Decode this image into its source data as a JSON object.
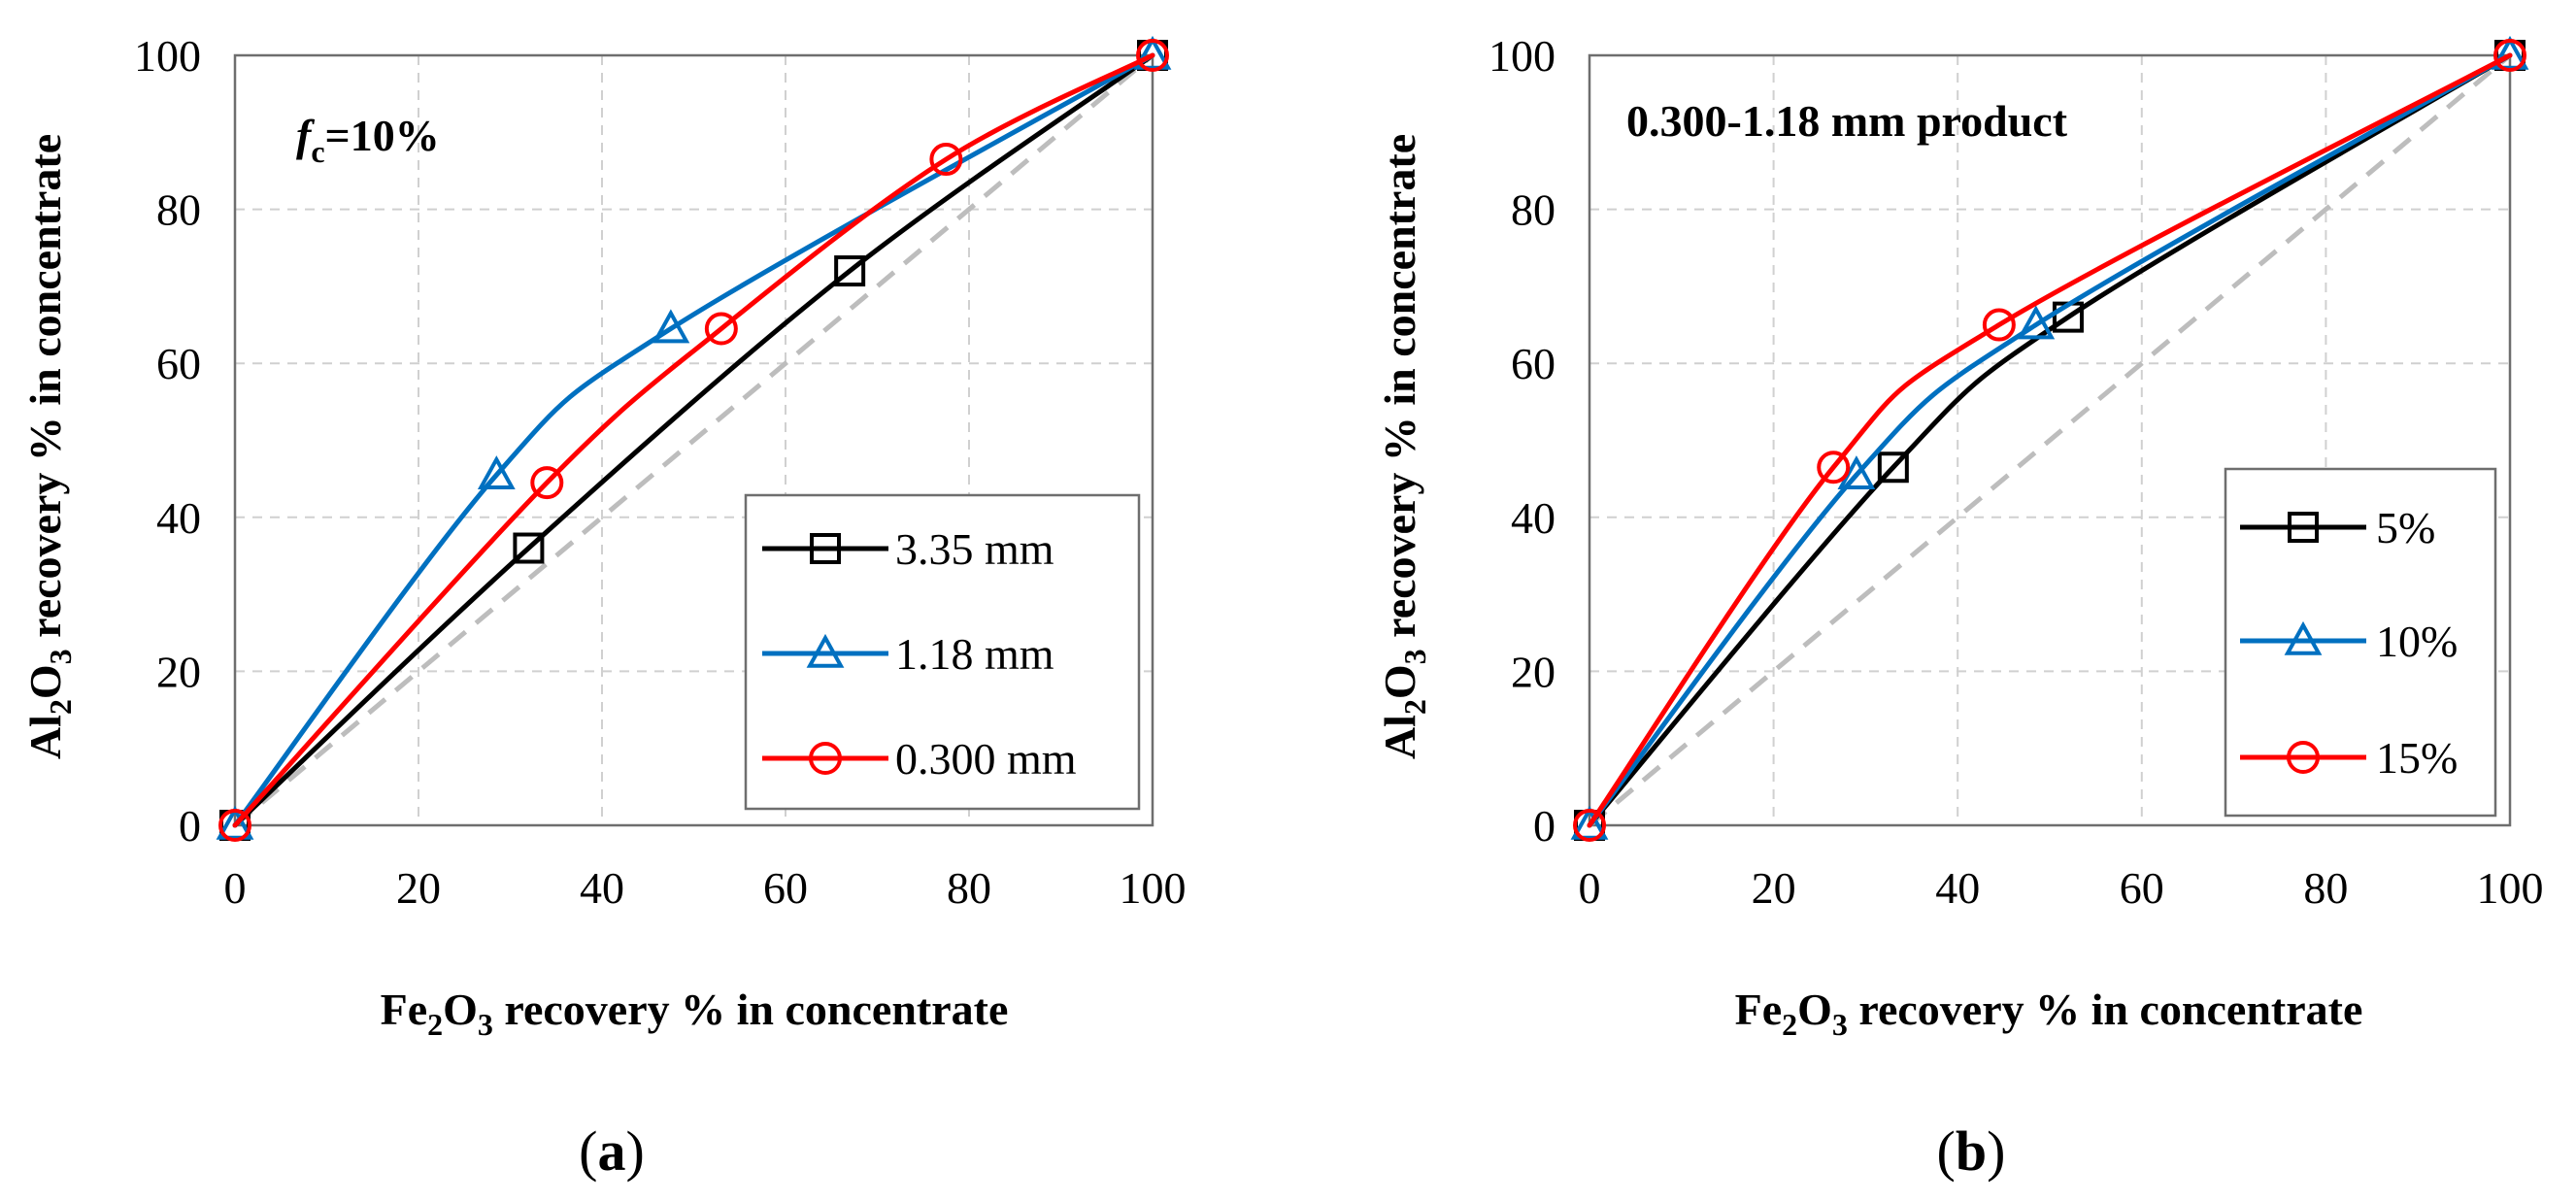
{
  "chart_data": [
    {
      "type": "line",
      "panel_label": "a",
      "annotation": {
        "italic": "f",
        "sub": "c",
        "rest": "=10%"
      },
      "xlabel": {
        "pre": "Fe",
        "s1": "2",
        "mid": "O",
        "s2": "3",
        "post": " recovery %  in concentrate"
      },
      "ylabel": {
        "pre": "Al",
        "s1": "2",
        "mid": "O",
        "s2": "3",
        "post": "  recovery %   in concentrate"
      },
      "xlim": [
        0,
        100
      ],
      "ylim": [
        0,
        100
      ],
      "xticks": [
        "0",
        "20",
        "40",
        "60",
        "80",
        "100"
      ],
      "yticks": [
        "0",
        "20",
        "40",
        "60",
        "80",
        "100"
      ],
      "grid": true,
      "legend_position": "bottom-right",
      "diagonal_reference": true,
      "series": [
        {
          "name": "3.35 mm",
          "color": "#000000",
          "marker": "square",
          "x": [
            0,
            32,
            67,
            100
          ],
          "y": [
            0,
            36,
            72,
            100
          ]
        },
        {
          "name": "1.18 mm",
          "color": "#0070c0",
          "marker": "triangle",
          "x": [
            0,
            28.5,
            47.5,
            100
          ],
          "y": [
            0,
            45.5,
            64.5,
            100
          ]
        },
        {
          "name": "0.300 mm",
          "color": "#ff0000",
          "marker": "circle",
          "x": [
            0,
            34,
            53,
            77.5,
            100
          ],
          "y": [
            0,
            44.5,
            64.5,
            86.5,
            100
          ]
        }
      ]
    },
    {
      "type": "line",
      "panel_label": "b",
      "annotation": {
        "text": "0.300-1.18 mm product"
      },
      "xlabel": {
        "pre": "Fe",
        "s1": "2",
        "mid": "O",
        "s2": "3",
        "post": " recovery %  in concentrate"
      },
      "ylabel": {
        "pre": "Al",
        "s1": "2",
        "mid": "O",
        "s2": "3",
        "post": "  recovery %   in concentrate"
      },
      "xlim": [
        0,
        100
      ],
      "ylim": [
        0,
        100
      ],
      "xticks": [
        "0",
        "20",
        "40",
        "60",
        "80",
        "100"
      ],
      "yticks": [
        "0",
        "20",
        "40",
        "60",
        "80",
        "100"
      ],
      "grid": true,
      "legend_position": "bottom-right",
      "diagonal_reference": true,
      "series": [
        {
          "name": "5%",
          "color": "#000000",
          "marker": "square",
          "x": [
            0,
            33,
            52,
            100
          ],
          "y": [
            0,
            46.5,
            66,
            100
          ]
        },
        {
          "name": "10%",
          "color": "#0070c0",
          "marker": "triangle",
          "x": [
            0,
            29,
            48.5,
            100
          ],
          "y": [
            0,
            45.5,
            65,
            100
          ]
        },
        {
          "name": "15%",
          "color": "#ff0000",
          "marker": "circle",
          "x": [
            0,
            26.5,
            44.5,
            100
          ],
          "y": [
            0,
            46.5,
            65,
            100
          ]
        }
      ]
    }
  ]
}
